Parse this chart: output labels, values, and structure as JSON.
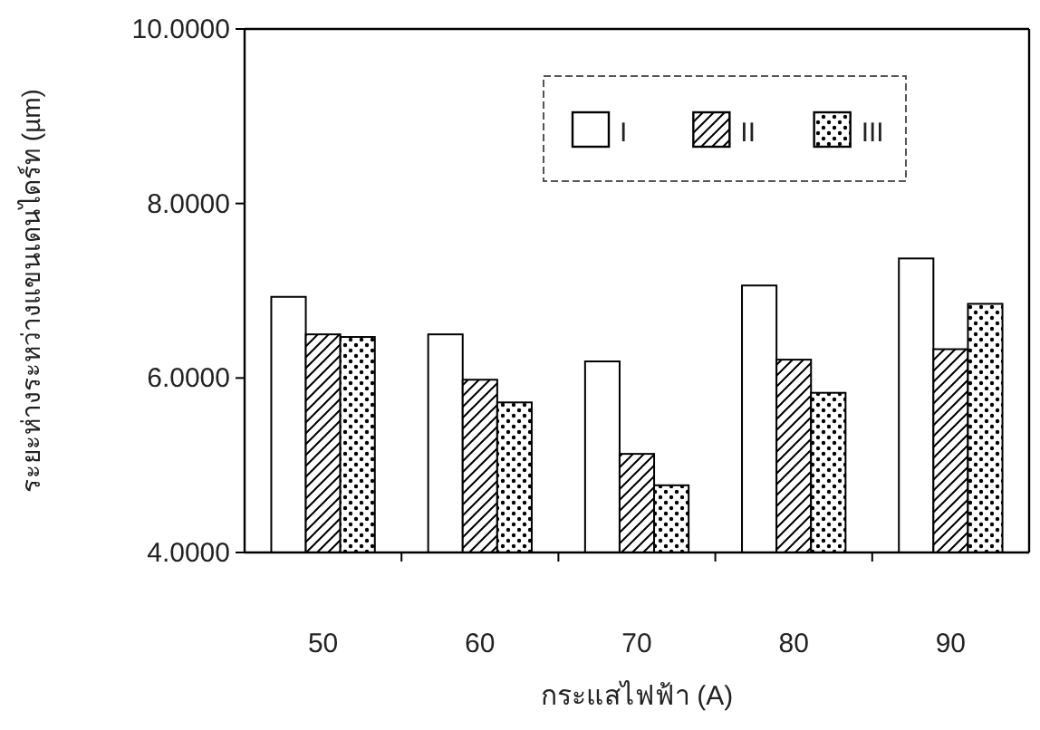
{
  "chart_data": {
    "type": "bar",
    "xlabel": "กระแสไฟฟ้า (A)",
    "ylabel": "ระยะห่างระหว่างแขนเดนไดร์ท (µm)",
    "categories": [
      "50",
      "60",
      "70",
      "80",
      "90"
    ],
    "series": [
      {
        "name": "I",
        "color": "#000000",
        "values": [
          6.93,
          6.5,
          6.19,
          7.06,
          7.37
        ]
      },
      {
        "name": "II",
        "color": "#000000",
        "values": [
          6.5,
          5.98,
          5.13,
          6.21,
          6.33
        ]
      },
      {
        "name": "III",
        "color": "#000000",
        "values": [
          6.47,
          5.72,
          4.77,
          5.83,
          6.85
        ]
      }
    ],
    "ylim": [
      4,
      10
    ],
    "yticks": [
      {
        "value": 4,
        "label": "4.0000"
      },
      {
        "value": 6,
        "label": "6.0000"
      },
      {
        "value": 8,
        "label": "8.0000"
      },
      {
        "value": 10,
        "label": "10.0000"
      }
    ],
    "grid": false,
    "legend": "top right"
  }
}
